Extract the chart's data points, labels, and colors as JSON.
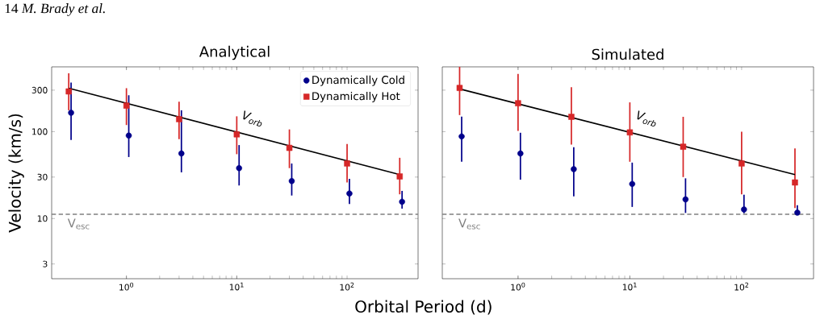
{
  "chart_data": [
    {
      "type": "scatter",
      "title": "Analytical",
      "xlabel": "Orbital Period (d)",
      "ylabel": "Velocity (km/s)",
      "log": "xy",
      "annotations": [
        "14 *M. Brady et al.*",
        {
          "text": "V$_{orb}$",
          "x": 10.4,
          "y": 130
        }
      ],
      "xlim": [
        0.21,
        440
      ],
      "ylim": [
        2.03,
        556
      ],
      "xticks": [
        {
          "value": 1,
          "label": "10$^{0}$"
        },
        {
          "value": 10,
          "label": "10$^{1}$"
        },
        {
          "value": 100,
          "label": "10$^{2}$"
        }
      ],
      "yticks": [
        3,
        10,
        30,
        100,
        300
      ],
      "legend": "top right",
      "ref_lines": [
        {
          "axis": "y",
          "value": 11.2,
          "label": "V$_{esc}$",
          "color": "#808080",
          "line_style": "dashed"
        }
      ],
      "series": [
        {
          "name": "Dynamically Cold",
          "marker": "circle",
          "color": "#00008b",
          "x": [
            0.315,
            1.05,
            3.15,
            10.5,
            31.5,
            105,
            315
          ],
          "values": [
            165,
            90,
            56,
            38,
            27,
            19.4,
            15.6
          ],
          "errors": [
            [
              80,
              367
            ],
            [
              51,
              262
            ],
            [
              34,
              176
            ],
            [
              24,
              70
            ],
            [
              18.4,
              43
            ],
            [
              14.7,
              28.6
            ],
            [
              13,
              20.8
            ]
          ]
        },
        {
          "name": "Dynamically Hot",
          "marker": "square",
          "color": "#d62728",
          "x": [
            0.3,
            1,
            3,
            10,
            30,
            100,
            300
          ],
          "values": [
            290,
            199,
            139,
            93,
            65,
            43,
            30.5
          ],
          "errors": [
            [
              176,
              469
            ],
            [
              119,
              316
            ],
            [
              82,
              221
            ],
            [
              55,
              150
            ],
            [
              38,
              106
            ],
            [
              26,
              72
            ],
            [
              19,
              50
            ]
          ]
        },
        {
          "type": "line",
          "marker": "none",
          "line_style": "solid",
          "color": "#000000",
          "x": [
            0.3,
            300
          ],
          "values": [
            316,
            32
          ]
        }
      ]
    },
    {
      "type": "scatter",
      "title": "Simulated",
      "log": "xy",
      "tick_labels": "x",
      "annotations": [
        {
          "text": "V$_{orb}$",
          "x": 10.6,
          "y": 130
        }
      ],
      "xlim": [
        0.21,
        440
      ],
      "ylim": [
        2.03,
        556
      ],
      "xticks": [
        {
          "value": 1,
          "label": "10$^{0}$"
        },
        {
          "value": 10,
          "label": "10$^{1}$"
        },
        {
          "value": 100,
          "label": "10$^{2}$"
        }
      ],
      "yticks": [
        3,
        10,
        30,
        100,
        300
      ],
      "ref_lines": [
        {
          "axis": "y",
          "value": 11.2,
          "label": "V$_{esc}$",
          "color": "#808080",
          "line_style": "dashed"
        }
      ],
      "series": [
        {
          "marker": "circle",
          "color": "#00008b",
          "x": [
            0.313,
            1.05,
            3.15,
            10.5,
            31.5,
            105,
            315
          ],
          "values": [
            88,
            56,
            37,
            25,
            16.6,
            12.7,
            11.7
          ],
          "errors": [
            [
              45,
              149
            ],
            [
              28,
              97
            ],
            [
              18,
              66
            ],
            [
              13.6,
              44
            ],
            [
              11.6,
              29
            ],
            [
              11.5,
              18.8
            ],
            [
              11.1,
              14.2
            ]
          ]
        },
        {
          "marker": "square",
          "color": "#d62728",
          "x": [
            0.3,
            1,
            3,
            10,
            30,
            100,
            300
          ],
          "values": [
            318,
            212,
            148,
            98,
            67,
            43,
            26
          ],
          "errors": [
            [
              155,
              556
            ],
            [
              102,
              461
            ],
            [
              71,
              324
            ],
            [
              45,
              217
            ],
            [
              30,
              148
            ],
            [
              19,
              100
            ],
            [
              13.2,
              64
            ]
          ]
        },
        {
          "type": "line",
          "marker": "none",
          "line_style": "solid",
          "color": "#000000",
          "x": [
            0.3,
            300
          ],
          "values": [
            310,
            32
          ]
        }
      ]
    }
  ]
}
